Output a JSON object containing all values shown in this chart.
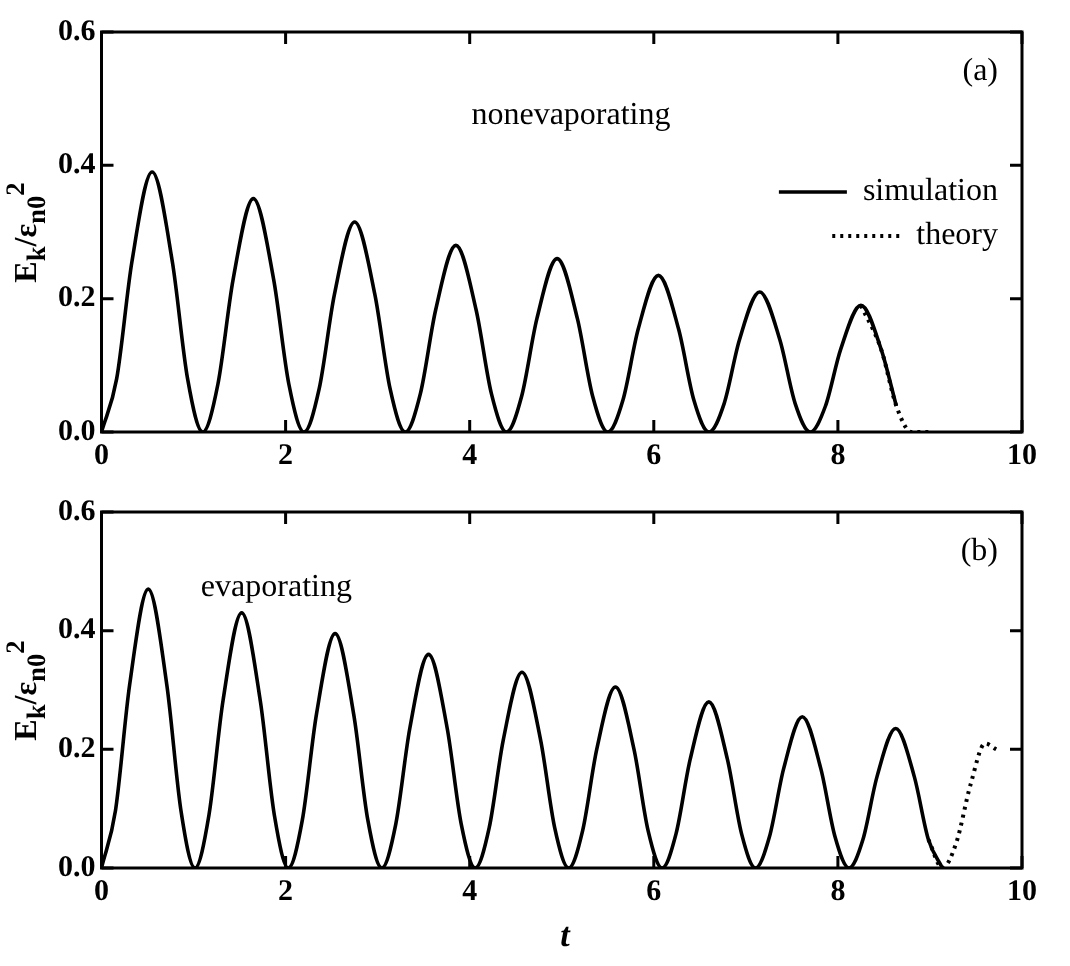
{
  "chart_data": [
    {
      "type": "line",
      "ylabel": "E$_{k}$/ε$_{n0}$$^{2}$",
      "xlim": [
        0,
        10
      ],
      "xticks": [
        0,
        2,
        4,
        6,
        8,
        10
      ],
      "ylim": [
        0,
        0.6
      ],
      "yticks": [
        {
          "value": 0,
          "label": "0.0"
        },
        {
          "value": 0.2,
          "label": "0.2"
        },
        {
          "value": 0.4,
          "label": "0.4"
        },
        {
          "value": 0.6,
          "label": "0.6"
        }
      ],
      "legend": "top right",
      "marker": "none",
      "grid": false,
      "annotations": [
        "nonevaporating",
        "(a)"
      ],
      "series": [
        {
          "name": "simulation",
          "color": "#000000",
          "line_style": "solid",
          "x": [
            0,
            0.165,
            0.33,
            0.55,
            0.77,
            0.935,
            1.1,
            1.265,
            1.43,
            1.65,
            1.87,
            2.035,
            2.2,
            2.365,
            2.53,
            2.75,
            2.97,
            3.135,
            3.3,
            3.465,
            3.63,
            3.85,
            4.07,
            4.235,
            4.4,
            4.565,
            4.73,
            4.95,
            5.17,
            5.335,
            5.5,
            5.665,
            5.83,
            6.05,
            6.27,
            6.435,
            6.6,
            6.765,
            6.93,
            7.15,
            7.37,
            7.535,
            7.7,
            7.865,
            8.03,
            8.25,
            8.47,
            8.635
          ],
          "values": [
            0,
            0.08,
            0.255,
            0.39,
            0.255,
            0.08,
            0,
            0.072,
            0.229,
            0.35,
            0.229,
            0.072,
            0,
            0.065,
            0.206,
            0.315,
            0.206,
            0.065,
            0,
            0.058,
            0.183,
            0.28,
            0.183,
            0.058,
            0,
            0.054,
            0.17,
            0.26,
            0.17,
            0.054,
            0,
            0.048,
            0.154,
            0.235,
            0.154,
            0.048,
            0,
            0.043,
            0.138,
            0.21,
            0.138,
            0.043,
            0,
            0.039,
            0.124,
            0.19,
            0.124,
            0.039
          ]
        },
        {
          "name": "theory",
          "color": "#000000",
          "line_style": "dotted",
          "x": [
            8.25,
            8.47,
            8.635,
            8.8,
            9.0
          ],
          "values": [
            0.19,
            0.124,
            0.039,
            0,
            0
          ]
        }
      ]
    },
    {
      "type": "line",
      "xlabel": "t",
      "ylabel": "E$_{k}$/ε$_{n0}$$^{2}$",
      "xlim": [
        0,
        10
      ],
      "xticks": [
        0,
        2,
        4,
        6,
        8,
        10
      ],
      "ylim": [
        0,
        0.6
      ],
      "yticks": [
        {
          "value": 0,
          "label": "0.0"
        },
        {
          "value": 0.2,
          "label": "0.2"
        },
        {
          "value": 0.4,
          "label": "0.4"
        },
        {
          "value": 0.6,
          "label": "0.6"
        }
      ],
      "marker": "none",
      "grid": false,
      "annotations": [
        "evaporating",
        "(b)"
      ],
      "series": [
        {
          "color": "#000000",
          "line_style": "solid",
          "x": [
            0,
            0.152,
            0.305,
            0.508,
            0.71,
            0.863,
            1.015,
            1.167,
            1.32,
            1.523,
            1.725,
            1.878,
            2.03,
            2.182,
            2.335,
            2.538,
            2.74,
            2.893,
            3.045,
            3.197,
            3.35,
            3.553,
            3.755,
            3.908,
            4.06,
            4.212,
            4.365,
            4.568,
            4.77,
            4.923,
            5.075,
            5.227,
            5.38,
            5.583,
            5.785,
            5.938,
            6.09,
            6.242,
            6.395,
            6.598,
            6.8,
            6.953,
            7.105,
            7.257,
            7.41,
            7.613,
            7.815,
            7.968,
            8.12,
            8.272,
            8.425,
            8.628,
            8.83,
            8.983,
            9.135
          ],
          "values": [
            0,
            0.097,
            0.308,
            0.47,
            0.308,
            0.097,
            0,
            0.089,
            0.282,
            0.43,
            0.282,
            0.089,
            0,
            0.081,
            0.259,
            0.395,
            0.259,
            0.081,
            0,
            0.074,
            0.236,
            0.36,
            0.236,
            0.074,
            0,
            0.068,
            0.216,
            0.33,
            0.216,
            0.068,
            0,
            0.063,
            0.2,
            0.305,
            0.2,
            0.063,
            0,
            0.058,
            0.183,
            0.28,
            0.183,
            0.058,
            0,
            0.053,
            0.167,
            0.255,
            0.167,
            0.053,
            0,
            0.048,
            0.154,
            0.235,
            0.154,
            0.048,
            0
          ]
        },
        {
          "color": "#000000",
          "line_style": "dotted",
          "x": [
            8.983,
            9.135,
            9.287,
            9.44,
            9.6,
            9.72
          ],
          "values": [
            0.048,
            0,
            0.043,
            0.14,
            0.21,
            0.2
          ]
        }
      ]
    }
  ]
}
